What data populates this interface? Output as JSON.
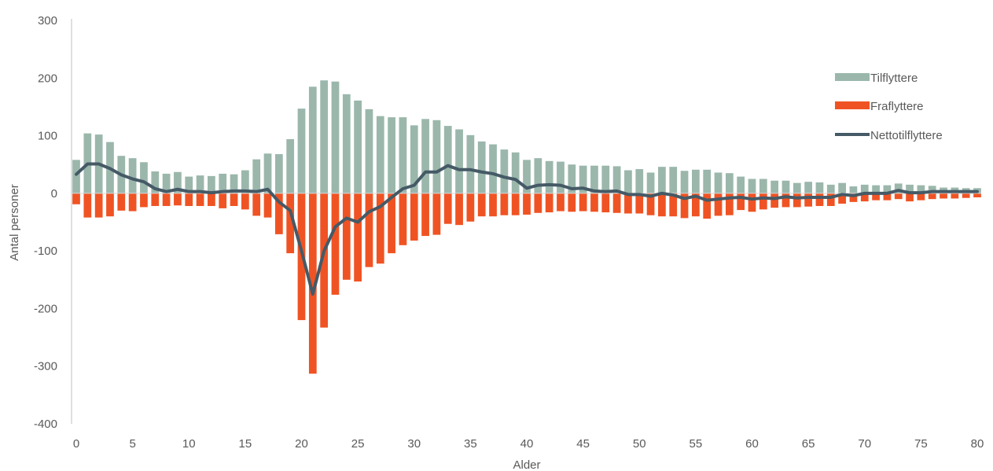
{
  "chart_data": {
    "type": "bar",
    "xlabel": "Alder",
    "ylabel": "Antal personer",
    "ylim": [
      -400,
      300
    ],
    "yticks": [
      300,
      200,
      100,
      0,
      -100,
      -200,
      -300,
      -400
    ],
    "xlim": [
      0,
      80
    ],
    "xticks": [
      0,
      5,
      10,
      15,
      20,
      25,
      30,
      35,
      40,
      45,
      50,
      55,
      60,
      65,
      70,
      75,
      80
    ],
    "legend_position": "right",
    "x": [
      0,
      1,
      2,
      3,
      4,
      5,
      6,
      7,
      8,
      9,
      10,
      11,
      12,
      13,
      14,
      15,
      16,
      17,
      18,
      19,
      20,
      21,
      22,
      23,
      24,
      25,
      26,
      27,
      28,
      29,
      30,
      31,
      32,
      33,
      34,
      35,
      36,
      37,
      38,
      39,
      40,
      41,
      42,
      43,
      44,
      45,
      46,
      47,
      48,
      49,
      50,
      51,
      52,
      53,
      54,
      55,
      56,
      57,
      58,
      59,
      60,
      61,
      62,
      63,
      64,
      65,
      66,
      67,
      68,
      69,
      70,
      71,
      72,
      73,
      74,
      75,
      76,
      77,
      78,
      79,
      80
    ],
    "series": [
      {
        "name": "Tilflyttere",
        "kind": "bar",
        "color": "#9bb7ab",
        "values": [
          58,
          104,
          102,
          89,
          65,
          61,
          54,
          38,
          34,
          37,
          29,
          31,
          30,
          34,
          33,
          40,
          59,
          69,
          68,
          94,
          147,
          185,
          196,
          194,
          172,
          161,
          146,
          134,
          132,
          132,
          118,
          129,
          127,
          117,
          111,
          101,
          90,
          85,
          76,
          71,
          58,
          61,
          56,
          55,
          50,
          48,
          48,
          48,
          47,
          40,
          42,
          36,
          46,
          46,
          39,
          41,
          41,
          36,
          35,
          29,
          25,
          25,
          22,
          22,
          18,
          20,
          19,
          15,
          18,
          12,
          15,
          14,
          14,
          17,
          15,
          14,
          13,
          10,
          10,
          9,
          9
        ]
      },
      {
        "name": "Fraflyttere",
        "kind": "bar",
        "color": "#f05323",
        "values": [
          -19,
          -42,
          -42,
          -40,
          -30,
          -31,
          -24,
          -22,
          -22,
          -21,
          -22,
          -22,
          -22,
          -26,
          -22,
          -28,
          -39,
          -42,
          -71,
          -104,
          -220,
          -313,
          -233,
          -176,
          -150,
          -153,
          -128,
          -122,
          -104,
          -90,
          -82,
          -74,
          -72,
          -53,
          -55,
          -49,
          -40,
          -40,
          -38,
          -38,
          -37,
          -34,
          -33,
          -31,
          -32,
          -31,
          -32,
          -33,
          -34,
          -35,
          -35,
          -38,
          -40,
          -40,
          -43,
          -40,
          -44,
          -39,
          -38,
          -29,
          -32,
          -28,
          -25,
          -24,
          -24,
          -23,
          -22,
          -22,
          -18,
          -15,
          -14,
          -12,
          -12,
          -10,
          -14,
          -12,
          -10,
          -9,
          -9,
          -8,
          -7
        ]
      },
      {
        "name": "Nettotilflyttere",
        "kind": "line",
        "color": "#455a66",
        "values": [
          33,
          51,
          51,
          43,
          32,
          25,
          20,
          8,
          3,
          7,
          3,
          3,
          1,
          3,
          4,
          4,
          3,
          7,
          -15,
          -30,
          -100,
          -175,
          -100,
          -58,
          -43,
          -50,
          -32,
          -23,
          -7,
          8,
          14,
          37,
          37,
          48,
          41,
          41,
          37,
          34,
          28,
          24,
          9,
          14,
          15,
          14,
          8,
          9,
          4,
          3,
          4,
          -2,
          -2,
          -5,
          0,
          -3,
          -9,
          -5,
          -12,
          -10,
          -8,
          -7,
          -10,
          -8,
          -9,
          -6,
          -8,
          -7,
          -7,
          -7,
          -2,
          -4,
          0,
          0,
          0,
          5,
          1,
          1,
          3,
          3,
          3,
          3,
          3
        ]
      }
    ]
  }
}
